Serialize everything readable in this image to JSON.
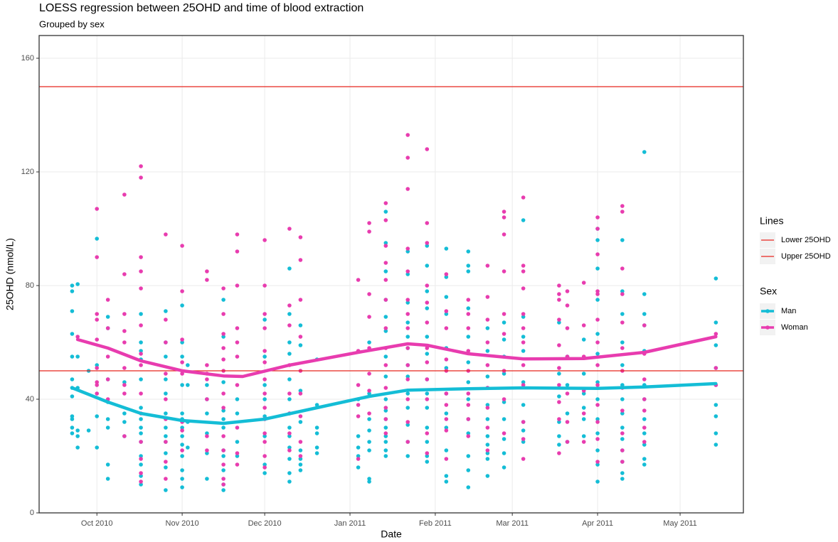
{
  "chart_data": {
    "type": "scatter",
    "title": "LOESS regression between 25OHD and time of blood extraction",
    "subtitle": "Grouped by sex",
    "x_label": "Date",
    "y_label": "25OHD (nmol/L)",
    "xlim": [
      "2010-09-10",
      "2011-05-24"
    ],
    "xticks": [
      {
        "value": "2010-10-01",
        "label": "Oct 2010"
      },
      {
        "value": "2010-11-01",
        "label": "Nov 2010"
      },
      {
        "value": "2010-12-01",
        "label": "Dec 2010"
      },
      {
        "value": "2011-01-01",
        "label": "Jan 2011"
      },
      {
        "value": "2011-02-01",
        "label": "Feb 2011"
      },
      {
        "value": "2011-03-01",
        "label": "Mar 2011"
      },
      {
        "value": "2011-04-01",
        "label": "Apr 2011"
      },
      {
        "value": "2011-05-01",
        "label": "May 2011"
      }
    ],
    "ylim": [
      0,
      168
    ],
    "yticks": [
      0,
      40,
      80,
      120,
      160
    ],
    "grid": true,
    "legend_title": "Sex",
    "lines_legend_title": "Lines",
    "hlines": [
      {
        "name": "Lower 25OHD",
        "value": 50,
        "color": "#e8261f"
      },
      {
        "name": "Upper 25OHD",
        "value": 150,
        "color": "#e8261f"
      }
    ],
    "series": [
      {
        "name": "Man",
        "color": "#14bdd6",
        "groups": [
          {
            "x": "2010-09-22",
            "values": [
              80,
              78,
              71,
              63,
              55,
              47,
              44,
              41,
              34,
              33,
              30,
              28
            ]
          },
          {
            "x": "2010-09-24",
            "values": [
              80.5,
              55,
              44,
              29,
              27,
              23
            ]
          },
          {
            "x": "2010-09-28",
            "values": [
              50,
              29
            ]
          },
          {
            "x": "2010-10-01",
            "values": [
              96.5,
              52,
              34,
              23
            ]
          },
          {
            "x": "2010-10-05",
            "values": [
              69,
              65,
              47,
              39,
              33,
              30,
              17,
              12
            ]
          },
          {
            "x": "2010-10-11",
            "values": [
              46,
              35,
              32,
              27
            ]
          },
          {
            "x": "2010-10-17",
            "values": [
              70,
              60,
              57,
              54,
              47,
              37,
              33,
              30,
              28,
              25,
              20,
              17,
              13,
              10
            ]
          },
          {
            "x": "2010-10-26",
            "values": [
              71,
              60,
              55,
              47,
              42,
              35,
              30,
              27,
              25,
              21,
              16,
              8
            ]
          },
          {
            "x": "2010-11-01",
            "values": [
              73,
              60,
              55,
              45,
              35,
              33,
              30,
              27,
              24,
              20,
              15,
              12,
              9
            ]
          },
          {
            "x": "2010-11-03",
            "values": [
              52,
              45,
              32,
              23
            ]
          },
          {
            "x": "2010-11-10",
            "values": [
              45,
              40,
              35,
              28,
              21,
              12
            ]
          },
          {
            "x": "2010-11-16",
            "values": [
              75,
              62,
              46,
              36,
              33,
              30,
              22,
              20,
              15,
              10,
              8
            ]
          },
          {
            "x": "2010-11-21",
            "values": [
              40,
              35,
              25,
              20
            ]
          },
          {
            "x": "2010-12-01",
            "values": [
              68,
              55,
              45,
              40,
              34,
              27,
              17,
              14
            ]
          },
          {
            "x": "2010-12-10",
            "values": [
              86,
              70,
              60,
              56,
              47,
              40,
              35,
              30,
              27,
              23,
              19,
              14,
              11
            ]
          },
          {
            "x": "2010-12-14",
            "values": [
              66,
              59,
              43,
              32,
              22,
              19,
              17,
              15
            ]
          },
          {
            "x": "2010-12-20",
            "values": [
              54,
              38,
              30,
              28,
              23,
              21
            ]
          },
          {
            "x": "2011-01-04",
            "values": [
              40,
              27,
              23,
              20,
              16
            ]
          },
          {
            "x": "2011-01-08",
            "values": [
              60,
              42,
              33,
              29,
              25,
              22,
              12,
              11
            ]
          },
          {
            "x": "2011-01-14",
            "values": [
              106,
              95,
              85,
              75,
              69,
              64,
              55,
              48,
              40,
              36,
              33,
              30,
              27,
              25,
              22,
              20
            ]
          },
          {
            "x": "2011-01-22",
            "values": [
              92,
              84,
              74,
              67,
              62,
              58,
              52,
              48,
              42,
              37,
              31,
              25,
              20
            ]
          },
          {
            "x": "2011-01-29",
            "values": [
              94,
              87,
              78,
              72,
              62,
              56,
              47,
              42,
              37,
              30,
              25,
              20,
              18
            ]
          },
          {
            "x": "2011-02-05",
            "values": [
              93,
              83,
              76,
              70,
              58,
              51,
              42,
              35,
              30,
              22,
              13,
              11
            ]
          },
          {
            "x": "2011-02-13",
            "values": [
              92,
              87,
              85,
              72,
              62,
              53,
              46,
              40,
              33,
              28,
              20,
              15,
              9
            ]
          },
          {
            "x": "2011-02-20",
            "values": [
              65,
              57,
              48,
              44,
              38,
              33,
              27,
              24,
              21,
              19,
              13
            ]
          },
          {
            "x": "2011-02-26",
            "values": [
              67,
              61,
              55,
              49,
              39,
              33,
              26,
              21,
              16
            ]
          },
          {
            "x": "2011-03-05",
            "values": [
              103,
              69,
              62,
              57,
              46,
              38,
              32,
              29,
              25
            ]
          },
          {
            "x": "2011-03-18",
            "values": [
              67,
              49,
              41,
              32,
              27,
              24
            ]
          },
          {
            "x": "2011-03-21",
            "values": [
              55,
              45,
              35,
              25
            ]
          },
          {
            "x": "2011-03-27",
            "values": [
              61,
              49,
              42,
              37,
              33,
              27
            ]
          },
          {
            "x": "2011-04-01",
            "values": [
              100,
              96,
              86,
              75,
              63,
              56,
              46,
              40,
              33,
              28,
              22,
              17,
              11
            ]
          },
          {
            "x": "2011-04-10",
            "values": [
              96,
              78,
              70,
              60,
              52,
              45,
              40,
              35,
              30,
              26,
              22,
              18,
              14,
              12
            ]
          },
          {
            "x": "2011-04-18",
            "values": [
              127,
              77,
              70,
              66,
              57,
              45,
              40,
              33,
              28,
              24,
              19,
              17
            ]
          },
          {
            "x": "2011-05-14",
            "values": [
              82.5,
              67,
              59,
              51,
              45,
              38,
              34,
              28,
              24
            ]
          }
        ]
      },
      {
        "name": "Woman",
        "color": "#e83caf",
        "groups": [
          {
            "x": "2010-09-24",
            "values": [
              62
            ]
          },
          {
            "x": "2010-10-01",
            "values": [
              107,
              90,
              70,
              68,
              61,
              51,
              46,
              45,
              42
            ]
          },
          {
            "x": "2010-10-05",
            "values": [
              75,
              65,
              55,
              47,
              40
            ]
          },
          {
            "x": "2010-10-11",
            "values": [
              112,
              84,
              70,
              64,
              60,
              51,
              45,
              42,
              27
            ]
          },
          {
            "x": "2010-10-17",
            "values": [
              122,
              118,
              90,
              85,
              79,
              66,
              56,
              52,
              42,
              35,
              25,
              19,
              14,
              11
            ]
          },
          {
            "x": "2010-10-26",
            "values": [
              98,
              68,
              60,
              49,
              40,
              33,
              25,
              18,
              12
            ]
          },
          {
            "x": "2010-11-01",
            "values": [
              94,
              78,
              61,
              53,
              49,
              32,
              29,
              22
            ]
          },
          {
            "x": "2010-11-10",
            "values": [
              85,
              82,
              52,
              49,
              47,
              40,
              27,
              22
            ]
          },
          {
            "x": "2010-11-16",
            "values": [
              79,
              70,
              63,
              58,
              54,
              50,
              42,
              37,
              27,
              22,
              17,
              12,
              10
            ]
          },
          {
            "x": "2010-11-21",
            "values": [
              98,
              92,
              80,
              65,
              60,
              55,
              45,
              30,
              21,
              17
            ]
          },
          {
            "x": "2010-12-01",
            "values": [
              96,
              80,
              70,
              65,
              57,
              53,
              47,
              42,
              37,
              33,
              28,
              25,
              20,
              16
            ]
          },
          {
            "x": "2010-12-10",
            "values": [
              100,
              73,
              66,
              52,
              42,
              35,
              28,
              22
            ]
          },
          {
            "x": "2010-12-14",
            "values": [
              97,
              89,
              75,
              62,
              50,
              42,
              34,
              25,
              20
            ]
          },
          {
            "x": "2011-01-04",
            "values": [
              82,
              57,
              45,
              38,
              34,
              19
            ]
          },
          {
            "x": "2011-01-08",
            "values": [
              102,
              99,
              77,
              69,
              58,
              49,
              43,
              35
            ]
          },
          {
            "x": "2011-01-14",
            "values": [
              109,
              103,
              94,
              88,
              82,
              75,
              65,
              58,
              52,
              44,
              37,
              33,
              28
            ]
          },
          {
            "x": "2011-01-22",
            "values": [
              133,
              125,
              114,
              93,
              85,
              75,
              70,
              65,
              58,
              52,
              47,
              40,
              32,
              25
            ]
          },
          {
            "x": "2011-01-29",
            "values": [
              128,
              102,
              95,
              80,
              74,
              67,
              58,
              53,
              47,
              40,
              28,
              21
            ]
          },
          {
            "x": "2011-02-05",
            "values": [
              84,
              71,
              65,
              54,
              50,
              42,
              38,
              33,
              29,
              19
            ]
          },
          {
            "x": "2011-02-13",
            "values": [
              75,
              70,
              65,
              57,
              50,
              42,
              38,
              33,
              27
            ]
          },
          {
            "x": "2011-02-20",
            "values": [
              87,
              76,
              68,
              60,
              52,
              44,
              37,
              30,
              22
            ]
          },
          {
            "x": "2011-02-26",
            "values": [
              106,
              104,
              98,
              85,
              70,
              63,
              50,
              40,
              28
            ]
          },
          {
            "x": "2011-03-05",
            "values": [
              111,
              87,
              85,
              79,
              70,
              65,
              60,
              52,
              45,
              32,
              26,
              19
            ]
          },
          {
            "x": "2011-03-18",
            "values": [
              80,
              77,
              75,
              68,
              59,
              51,
              45,
              39,
              33,
              21
            ]
          },
          {
            "x": "2011-03-21",
            "values": [
              78,
              73,
              65,
              55,
              42,
              32,
              25
            ]
          },
          {
            "x": "2011-03-27",
            "values": [
              81,
              66,
              55,
              43,
              35,
              25
            ]
          },
          {
            "x": "2011-04-01",
            "values": [
              104,
              100,
              91,
              78,
              77,
              68,
              60,
              52,
              45,
              38,
              32,
              26,
              18
            ]
          },
          {
            "x": "2011-04-10",
            "values": [
              108,
              106,
              86,
              77,
              67,
              58,
              50,
              44,
              36,
              28,
              22,
              18
            ]
          },
          {
            "x": "2011-04-18",
            "values": [
              66,
              56,
              47,
              40,
              36,
              30,
              25
            ]
          },
          {
            "x": "2011-05-14",
            "values": [
              63,
              51,
              45
            ]
          }
        ]
      }
    ],
    "smooth": [
      {
        "x": [
          "2010-09-22",
          "2010-10-05",
          "2010-10-17",
          "2010-11-01",
          "2010-11-16",
          "2010-12-01",
          "2010-12-20",
          "2011-01-08",
          "2011-01-22",
          "2011-02-13",
          "2011-03-05",
          "2011-04-01",
          "2011-04-18",
          "2011-05-14"
        ],
        "values": [
          44,
          39,
          35,
          32.5,
          31.5,
          33,
          37,
          41,
          43.2,
          43.7,
          44,
          43.8,
          44.3,
          45.5
        ]
      },
      {
        "x": [
          "2010-09-24",
          "2010-10-05",
          "2010-10-17",
          "2010-11-01",
          "2010-11-16",
          "2010-11-23",
          "2010-12-10",
          "2011-01-04",
          "2011-01-22",
          "2011-01-29",
          "2011-02-13",
          "2011-03-05",
          "2011-03-27",
          "2011-04-18",
          "2011-05-14"
        ],
        "values": [
          61,
          58,
          53.5,
          50,
          48.2,
          48,
          52,
          56.5,
          59.5,
          59,
          56,
          54.2,
          54.3,
          56.5,
          62
        ]
      }
    ]
  }
}
